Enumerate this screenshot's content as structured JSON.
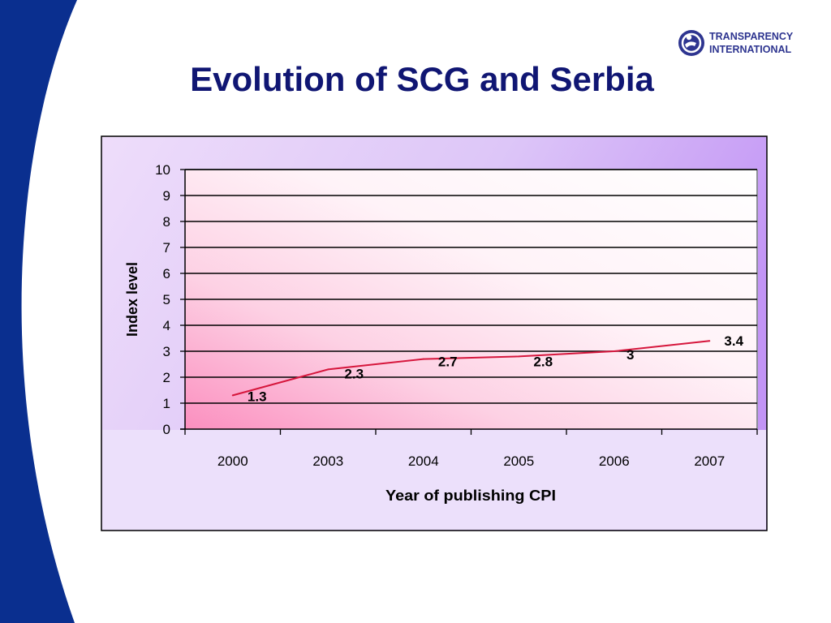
{
  "slide": {
    "title": "Evolution of SCG and Serbia",
    "logo_line1": "TRANSPARENCY",
    "logo_line2": "INTERNATIONAL",
    "accent_color": "#0a2f8f",
    "title_color": "#101673"
  },
  "chart_data": {
    "type": "line",
    "categories": [
      "2000",
      "2003",
      "2004",
      "2005",
      "2006",
      "2007"
    ],
    "series": [
      {
        "values": [
          1.3,
          2.3,
          2.7,
          2.8,
          3,
          3.4
        ],
        "labels": [
          "1.3",
          "2.3",
          "2.7",
          "2.8",
          "3",
          "3.4"
        ],
        "color": "#d6163c"
      }
    ],
    "xlabel": "Year of publishing CPI",
    "ylabel": "Index level",
    "ylim": [
      0,
      10
    ],
    "yticks": [
      "0",
      "1",
      "2",
      "3",
      "4",
      "5",
      "6",
      "7",
      "8",
      "9",
      "10"
    ],
    "grid": true,
    "legend": "none"
  }
}
